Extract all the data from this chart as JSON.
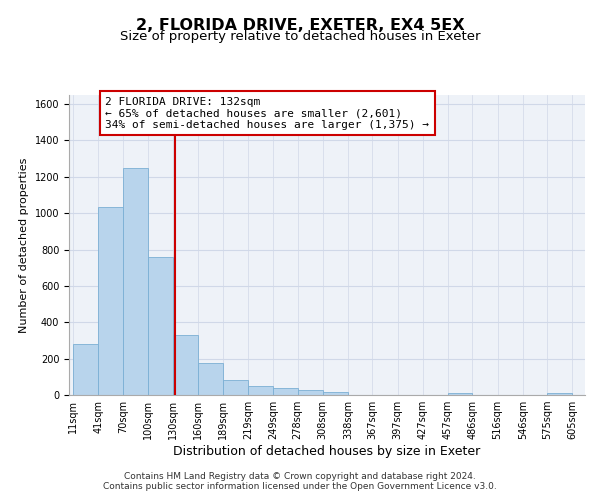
{
  "title": "2, FLORIDA DRIVE, EXETER, EX4 5EX",
  "subtitle": "Size of property relative to detached houses in Exeter",
  "xlabel": "Distribution of detached houses by size in Exeter",
  "ylabel": "Number of detached properties",
  "bar_left_edges": [
    11,
    41,
    70,
    100,
    130,
    160,
    189,
    219,
    249,
    278,
    308,
    338,
    367,
    397,
    427,
    457,
    486,
    516,
    546,
    575
  ],
  "bar_heights": [
    280,
    1035,
    1250,
    760,
    330,
    175,
    85,
    50,
    38,
    25,
    18,
    0,
    0,
    0,
    0,
    10,
    0,
    0,
    0,
    10
  ],
  "bar_widths": [
    30,
    29,
    30,
    30,
    30,
    29,
    30,
    30,
    29,
    30,
    30,
    29,
    30,
    30,
    30,
    29,
    30,
    30,
    29,
    30
  ],
  "bar_color": "#b8d4ec",
  "bar_edge_color": "#7bafd4",
  "vline_x": 132,
  "vline_color": "#cc0000",
  "annotation_text_line1": "2 FLORIDA DRIVE: 132sqm",
  "annotation_text_line2": "← 65% of detached houses are smaller (2,601)",
  "annotation_text_line3": "34% of semi-detached houses are larger (1,375) →",
  "ylim": [
    0,
    1650
  ],
  "yticks": [
    0,
    200,
    400,
    600,
    800,
    1000,
    1200,
    1400,
    1600
  ],
  "xtick_labels": [
    "11sqm",
    "41sqm",
    "70sqm",
    "100sqm",
    "130sqm",
    "160sqm",
    "189sqm",
    "219sqm",
    "249sqm",
    "278sqm",
    "308sqm",
    "338sqm",
    "367sqm",
    "397sqm",
    "427sqm",
    "457sqm",
    "486sqm",
    "516sqm",
    "546sqm",
    "575sqm",
    "605sqm"
  ],
  "xtick_positions": [
    11,
    41,
    70,
    100,
    130,
    160,
    189,
    219,
    249,
    278,
    308,
    338,
    367,
    397,
    427,
    457,
    486,
    516,
    546,
    575,
    605
  ],
  "xlim_left": 6,
  "xlim_right": 620,
  "grid_color": "#d0d8e8",
  "background_color": "#ffffff",
  "plot_bg_color": "#eef2f8",
  "footer_line1": "Contains HM Land Registry data © Crown copyright and database right 2024.",
  "footer_line2": "Contains public sector information licensed under the Open Government Licence v3.0.",
  "title_fontsize": 11.5,
  "subtitle_fontsize": 9.5,
  "xlabel_fontsize": 9,
  "ylabel_fontsize": 8,
  "tick_fontsize": 7,
  "annotation_fontsize": 8,
  "footer_fontsize": 6.5
}
